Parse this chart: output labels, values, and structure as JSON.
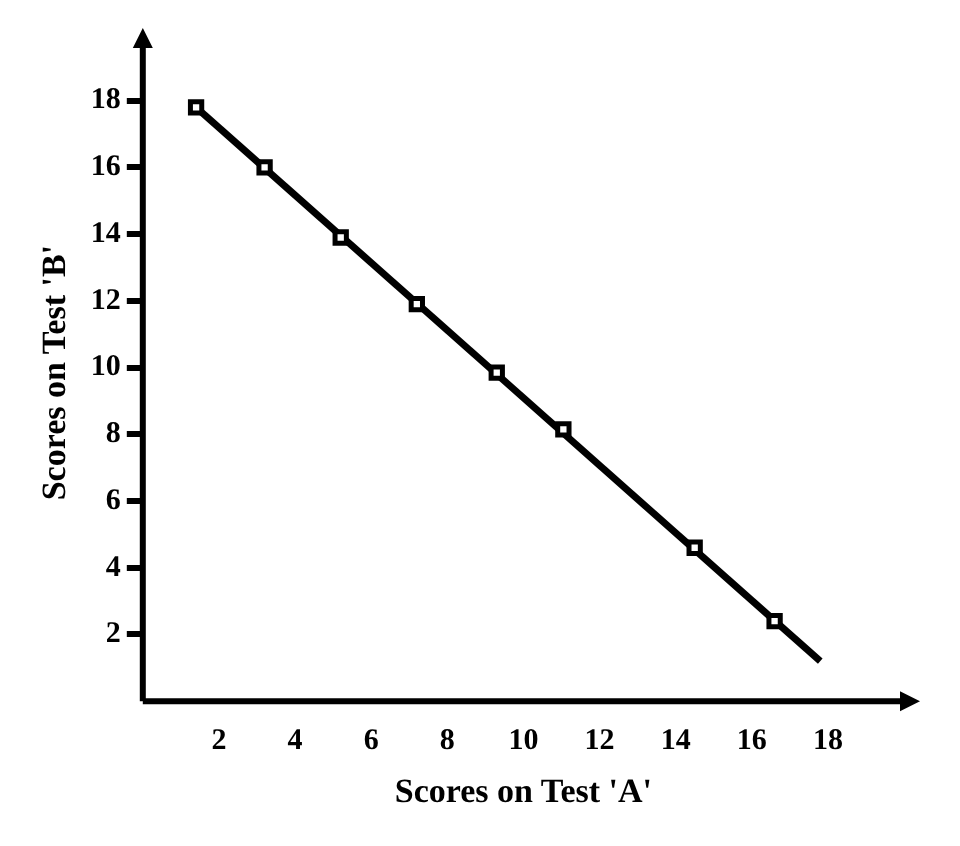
{
  "chart_data": {
    "type": "scatter",
    "xlabel": "Scores on Test 'A'",
    "ylabel": "Scores on Test 'B'",
    "xlim": [
      0,
      20
    ],
    "ylim": [
      0,
      19.7
    ],
    "xticks": [
      2,
      4,
      6,
      8,
      10,
      12,
      14,
      16,
      18
    ],
    "yticks": [
      2,
      4,
      6,
      8,
      10,
      12,
      14,
      16,
      18
    ],
    "grid": false,
    "legend": false,
    "marker": "square",
    "series": [
      {
        "color": "#000000",
        "x": [
          1.4,
          3.2,
          5.2,
          7.2,
          9.3,
          11.05,
          14.5,
          16.6
        ],
        "values": [
          17.8,
          16.0,
          13.9,
          11.9,
          9.85,
          8.15,
          4.6,
          2.4
        ]
      },
      {
        "type": "line",
        "color": "#000000",
        "marker": "none",
        "line_style": "solid",
        "x": [
          1.4,
          17.8
        ],
        "values": [
          17.8,
          1.2
        ]
      }
    ]
  }
}
